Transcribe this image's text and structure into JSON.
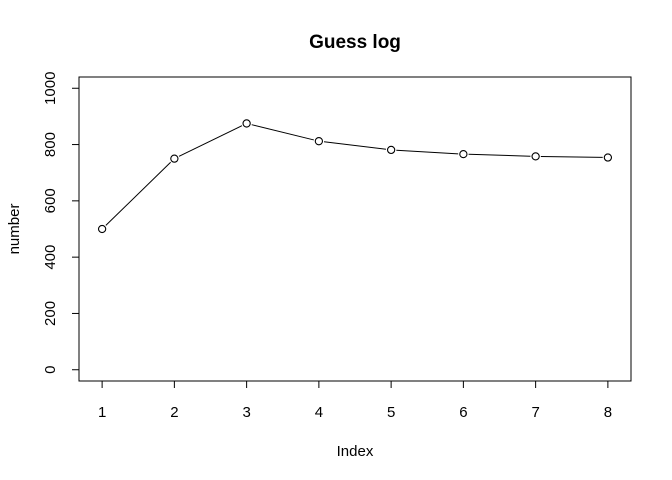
{
  "chart_data": {
    "type": "line",
    "title": "Guess log",
    "xlabel": "Index",
    "ylabel": "number",
    "x": [
      1,
      2,
      3,
      4,
      5,
      6,
      7,
      8
    ],
    "series": [
      {
        "values": [
          500,
          750,
          875,
          812,
          781,
          766,
          758,
          754
        ]
      }
    ],
    "xlim": [
      0.68,
      8.32
    ],
    "ylim": [
      -40,
      1040
    ],
    "x_ticks": [
      "1",
      "2",
      "3",
      "4",
      "5",
      "6",
      "7",
      "8"
    ],
    "y_ticks": [
      "0",
      "200",
      "400",
      "600",
      "800",
      "1000"
    ],
    "grid": false,
    "markers": "open-circle",
    "line_color": "#000000"
  }
}
